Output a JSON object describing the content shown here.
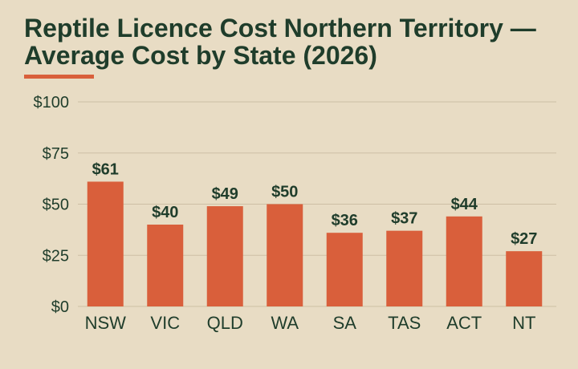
{
  "colors": {
    "background": "#e8dcc4",
    "title": "#1f3d2b",
    "accent": "#d95f3b",
    "bar": "#d95f3b",
    "grid": "#cdbfa5",
    "text": "#1f3d2b"
  },
  "chart_data": {
    "type": "bar",
    "title": "Reptile Licence Cost Northern Territory — Average Cost by State (2026)",
    "xlabel": "",
    "ylabel": "",
    "categories": [
      "NSW",
      "VIC",
      "QLD",
      "WA",
      "SA",
      "TAS",
      "ACT",
      "NT"
    ],
    "values": [
      61,
      40,
      49,
      50,
      36,
      37,
      44,
      27
    ],
    "value_labels": [
      "$61",
      "$40",
      "$49",
      "$50",
      "$36",
      "$37",
      "$44",
      "$27"
    ],
    "yticks": [
      0,
      25,
      50,
      75,
      100
    ],
    "ytick_labels": [
      "$0",
      "$25",
      "$50",
      "$75",
      "$100"
    ],
    "ylim": [
      0,
      100
    ],
    "grid": true,
    "legend": "none"
  }
}
